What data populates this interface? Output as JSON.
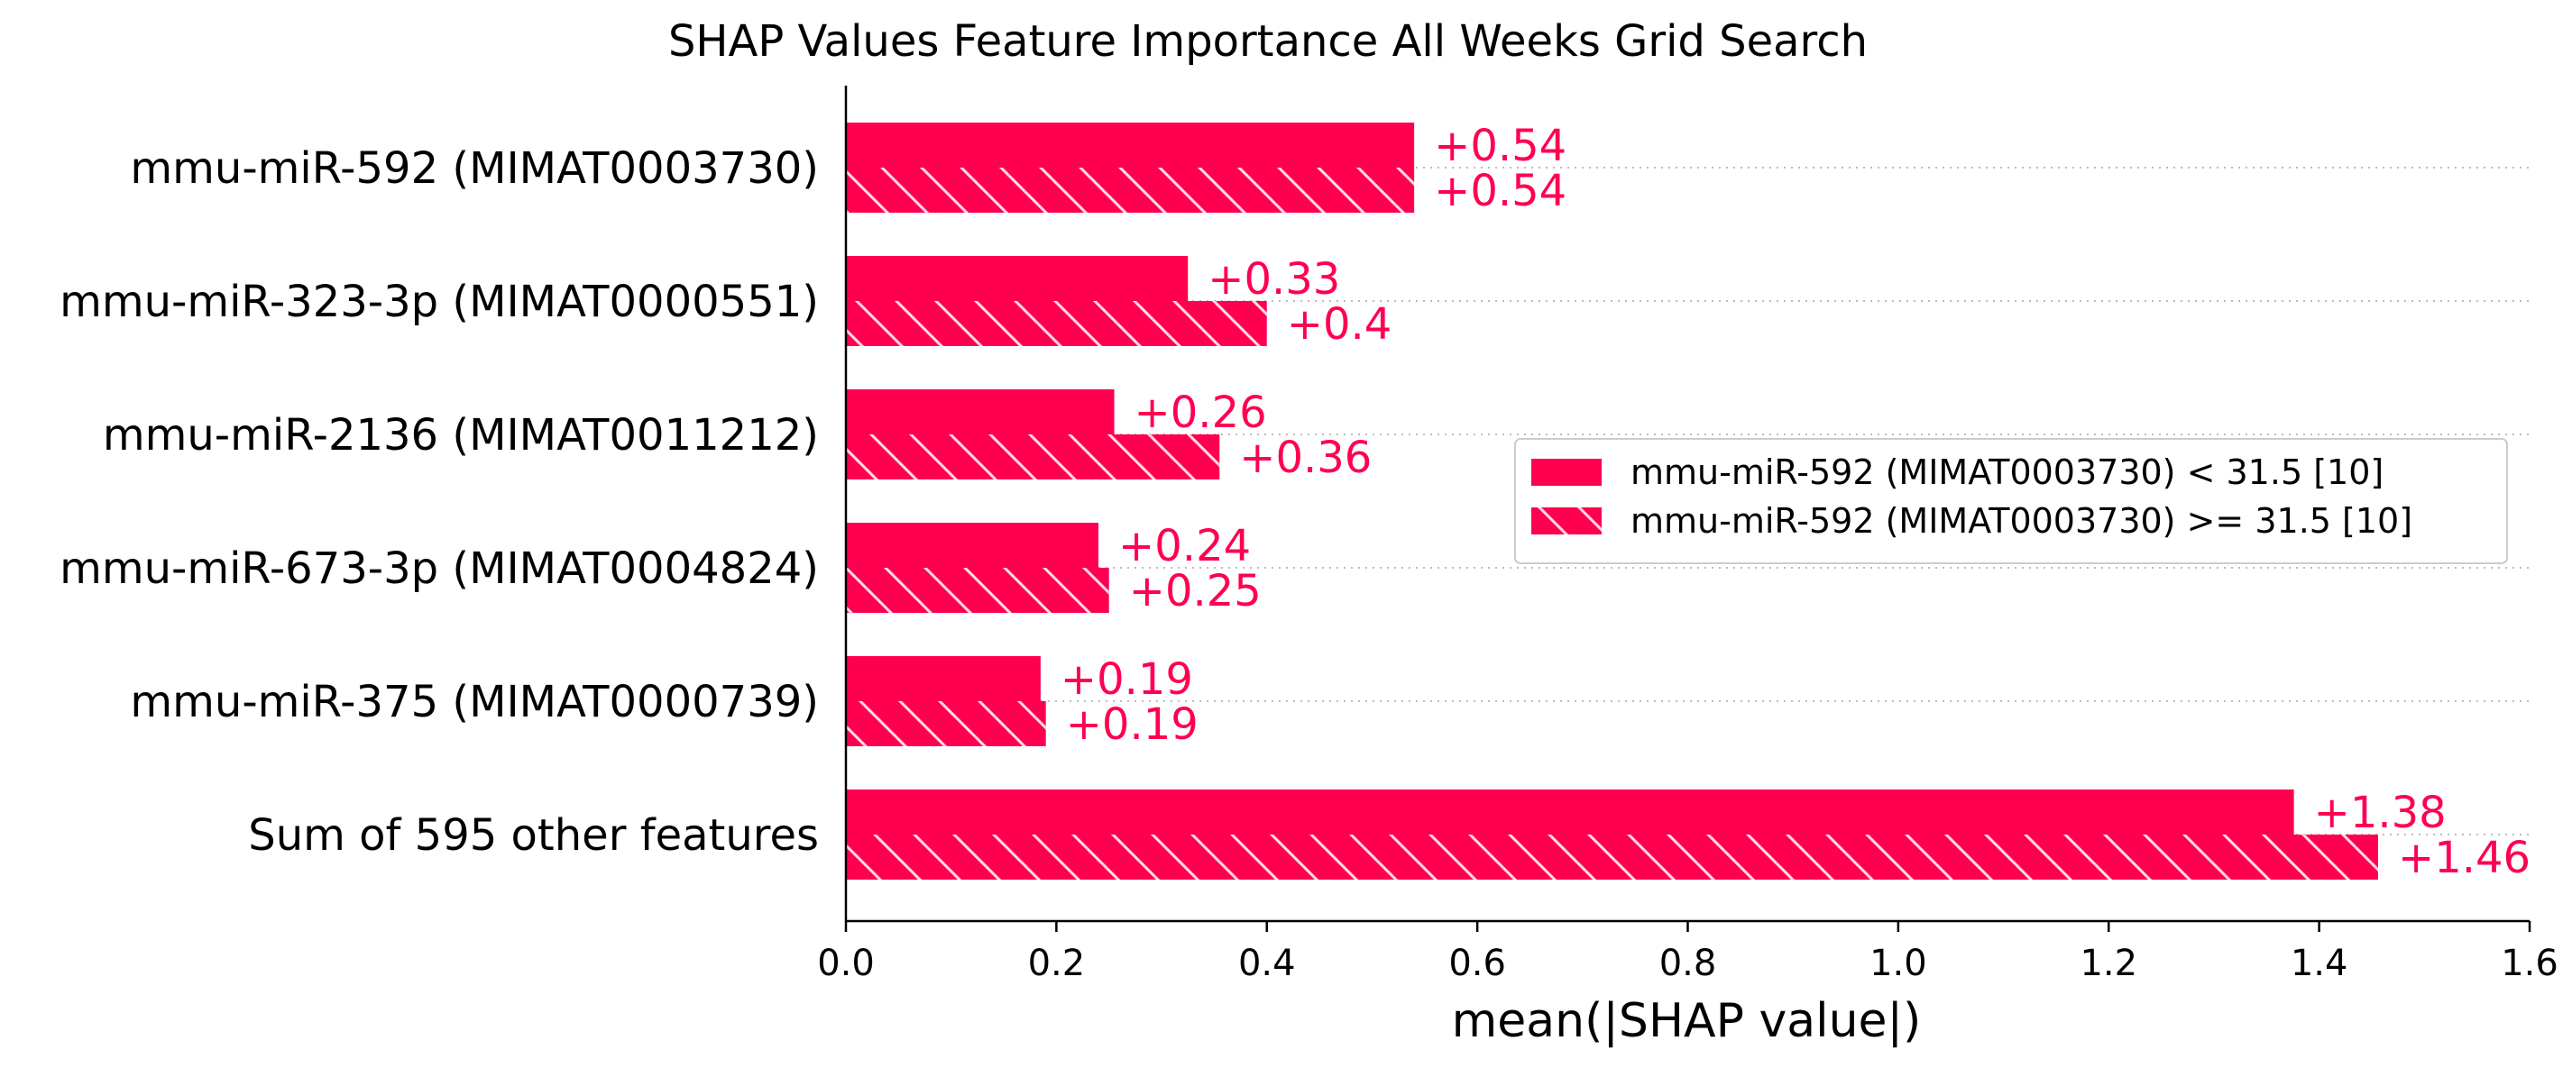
{
  "chart_data": {
    "type": "bar",
    "orientation": "horizontal",
    "title": "SHAP Values Feature Importance All Weeks Grid Search",
    "xlabel": "mean(|SHAP value|)",
    "ylabel": "",
    "xlim": [
      0,
      1.6
    ],
    "xticks": [
      "0.0",
      "0.2",
      "0.4",
      "0.6",
      "0.8",
      "1.0",
      "1.2",
      "1.4",
      "1.6"
    ],
    "grid": "horizontal dotted lines at each feature",
    "legend_position": "right",
    "categories": [
      "mmu-miR-592 (MIMAT0003730)",
      "mmu-miR-323-3p (MIMAT0000551)",
      "mmu-miR-2136 (MIMAT0011212)",
      "mmu-miR-673-3p (MIMAT0004824)",
      "mmu-miR-375 (MIMAT0000739)",
      "Sum of 595 other features"
    ],
    "series": [
      {
        "name": "mmu-miR-592 (MIMAT0003730) < 31.5 [10]",
        "values": [
          0.54,
          0.325,
          0.255,
          0.24,
          0.185,
          1.376
        ],
        "labels": [
          "+0.54",
          "+0.33",
          "+0.26",
          "+0.24",
          "+0.19",
          "+1.38"
        ],
        "pattern": "solid"
      },
      {
        "name": "mmu-miR-592 (MIMAT0003730) >= 31.5 [10]",
        "values": [
          0.54,
          0.4,
          0.355,
          0.25,
          0.19,
          1.456
        ],
        "labels": [
          "+0.54",
          "+0.4",
          "+0.36",
          "+0.25",
          "+0.19",
          "+1.46"
        ],
        "pattern": "hatched"
      }
    ],
    "colors": {
      "bar": "#ff0051",
      "value_label": "#ff0051",
      "hatch": "#ffffff",
      "grid": "#bbbbbb",
      "axis": "#000000"
    }
  }
}
